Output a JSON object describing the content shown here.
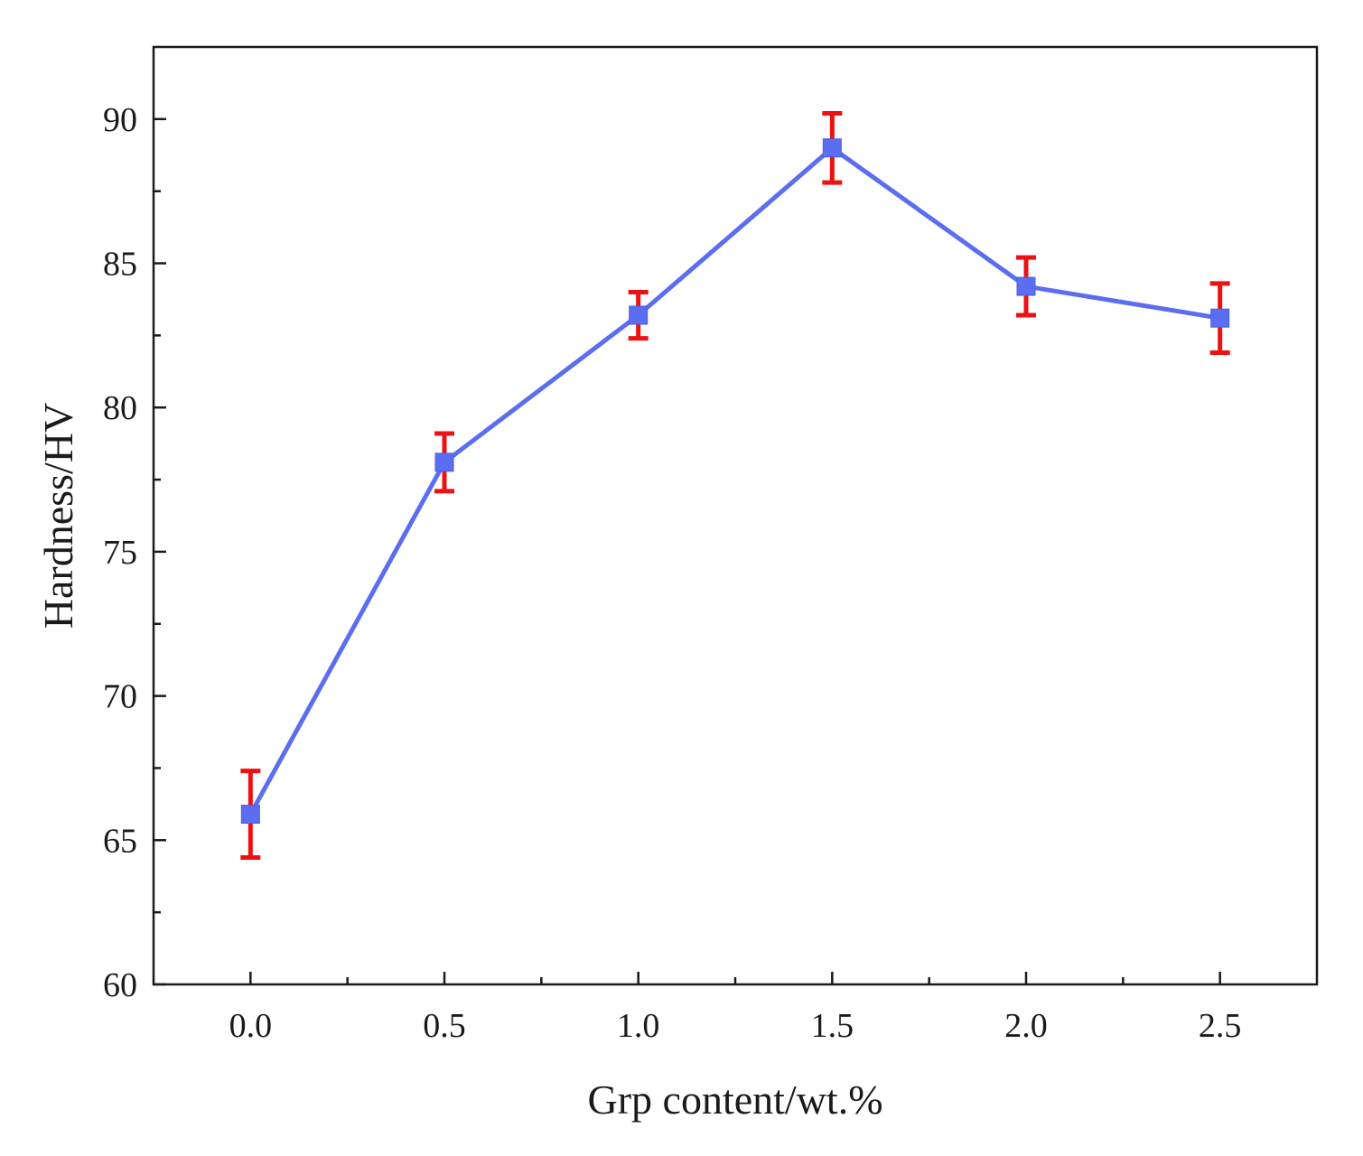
{
  "chart_data": {
    "type": "line",
    "title": "",
    "xlabel": "Grp content/wt.%",
    "ylabel": "Hardness/HV",
    "xlim": [
      -0.25,
      2.75
    ],
    "ylim": [
      60,
      92.5
    ],
    "x_ticks": [
      0.0,
      0.5,
      1.0,
      1.5,
      2.0,
      2.5
    ],
    "x_tick_labels": [
      "0.0",
      "0.5",
      "1.0",
      "1.5",
      "2.0",
      "2.5"
    ],
    "x_minor_ticks": [
      0.25,
      0.75,
      1.25,
      1.75,
      2.25
    ],
    "y_ticks": [
      60,
      65,
      70,
      75,
      80,
      85,
      90
    ],
    "y_tick_labels": [
      "60",
      "65",
      "70",
      "75",
      "80",
      "85",
      "90"
    ],
    "y_minor_ticks": [
      62.5,
      67.5,
      72.5,
      77.5,
      82.5,
      87.5
    ],
    "grid": false,
    "legend": false,
    "series": [
      {
        "name": "Hardness",
        "x": [
          0.0,
          0.5,
          1.0,
          1.5,
          2.0,
          2.5
        ],
        "values": [
          65.9,
          78.1,
          83.2,
          89.0,
          84.2,
          83.1
        ],
        "error": [
          1.5,
          1.0,
          0.8,
          1.2,
          1.0,
          1.2
        ],
        "line_color": "#5b6ef2",
        "marker": "square",
        "marker_color": "#5b6ef2",
        "error_color": "#ee1111"
      }
    ]
  }
}
